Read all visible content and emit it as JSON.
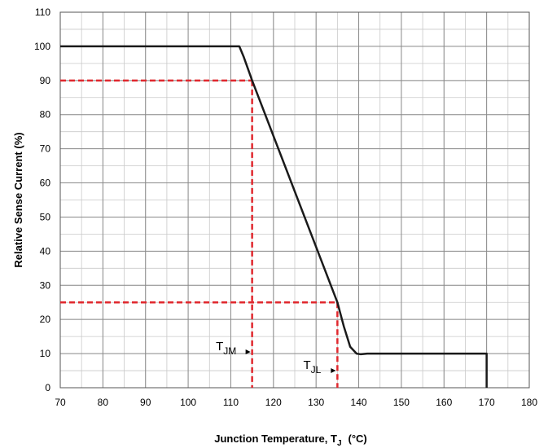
{
  "chart_data": {
    "type": "line",
    "xlabel": "Junction Temperature, T",
    "xlabel_sub": "J",
    "xlabel_unit": "(°C)",
    "ylabel": "Relative Sense Current (%)",
    "xlim": [
      70,
      180
    ],
    "ylim": [
      0,
      110
    ],
    "x_ticks": [
      70,
      80,
      90,
      100,
      110,
      120,
      130,
      140,
      150,
      160,
      170,
      180
    ],
    "y_ticks": [
      0,
      10,
      20,
      30,
      40,
      50,
      60,
      70,
      80,
      90,
      100,
      110
    ],
    "x_minor_step": 5,
    "y_minor_step": 5,
    "grid": true,
    "series": [
      {
        "color": "#1a1a1a",
        "points": [
          [
            70,
            100
          ],
          [
            112,
            100
          ],
          [
            113,
            97
          ],
          [
            115,
            90
          ],
          [
            135,
            25
          ],
          [
            136.5,
            18
          ],
          [
            138,
            12
          ],
          [
            139.5,
            10
          ],
          [
            140.5,
            9.8
          ],
          [
            142,
            10
          ],
          [
            170,
            10
          ],
          [
            170,
            0
          ]
        ]
      }
    ],
    "reference_lines": {
      "color": "#e0282e",
      "segments": [
        [
          [
            70,
            90
          ],
          [
            115,
            90
          ]
        ],
        [
          [
            115,
            90
          ],
          [
            115,
            0
          ]
        ],
        [
          [
            70,
            25
          ],
          [
            135,
            25
          ]
        ],
        [
          [
            135,
            25
          ],
          [
            135,
            0
          ]
        ]
      ]
    },
    "annotations": [
      {
        "main": "T",
        "sub": "JM",
        "arrow_to": [
          115,
          10.5
        ],
        "text_at": [
          106.5,
          11
        ]
      },
      {
        "main": "T",
        "sub": "JL",
        "arrow_to": [
          135,
          5
        ],
        "text_at": [
          127,
          5.5
        ]
      }
    ]
  }
}
